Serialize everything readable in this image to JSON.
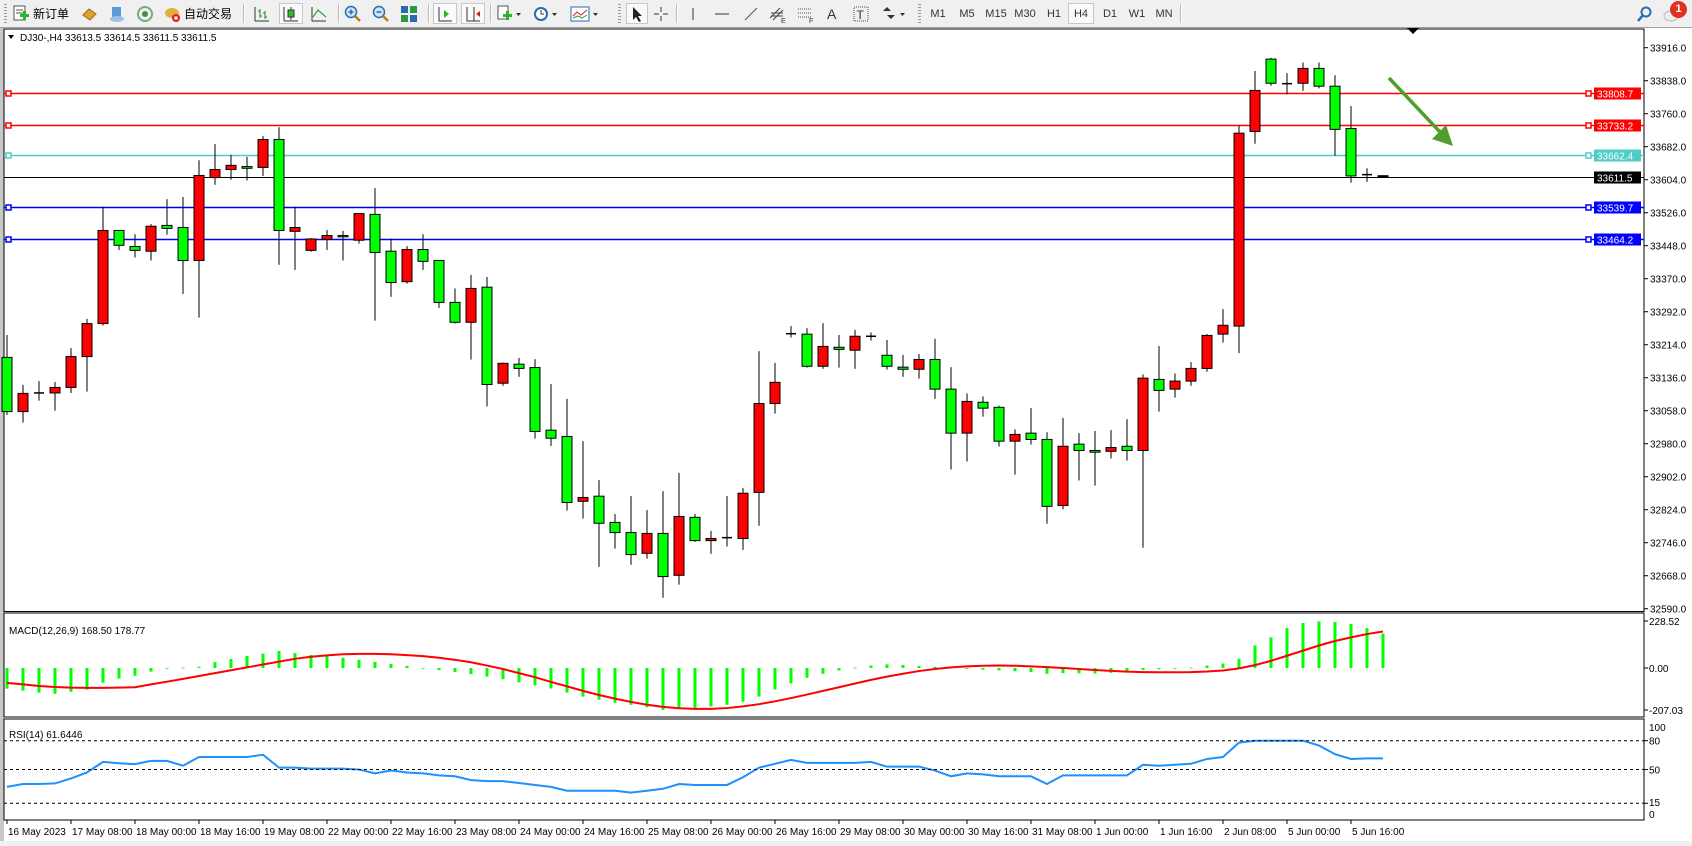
{
  "toolbar": {
    "new_order_label": "新订单",
    "auto_trading_label": "自动交易",
    "timeframes": [
      "M1",
      "M5",
      "M15",
      "M30",
      "H1",
      "H4",
      "D1",
      "W1",
      "MN"
    ],
    "active_timeframe": "H4",
    "notification_count": "1",
    "icons": [
      "new-order-icon",
      "market-watch-icon",
      "navigator-icon",
      "signals-icon",
      "auto-trading-icon",
      "bar-chart-icon",
      "candlestick-icon",
      "line-chart-icon",
      "zoom-in-icon",
      "zoom-out-icon",
      "tile-windows-icon",
      "chart-shift-icon",
      "autoscroll-icon",
      "new-chart-icon",
      "periods-icon",
      "indicators-icon",
      "cursor-icon",
      "crosshair-icon",
      "vertical-line-icon",
      "horizontal-line-icon",
      "trendline-icon",
      "equidistant-channel-icon",
      "fibonacci-icon",
      "text-icon",
      "text-label-icon",
      "arrows-icon",
      "search-icon",
      "notification-icon"
    ]
  },
  "chart": {
    "header": "DJ30-,H4  33613.5 33614.5 33611.5 33611.5",
    "symbol": "DJ30-",
    "timeframe": "H4",
    "colors": {
      "bull": "#ff0000",
      "bear": "#00ff00",
      "outline": "#000000",
      "macd_hist": "#00ff00",
      "macd_signal": "#ff0000",
      "rsi": "#1e90ff",
      "arrow": "#4f9e2e"
    },
    "price_ticks": [
      "33916.0",
      "33838.0",
      "33760.0",
      "33682.0",
      "33604.0",
      "33526.0",
      "33448.0",
      "33370.0",
      "33292.0",
      "33214.0",
      "33136.0",
      "33058.0",
      "32980.0",
      "32902.0",
      "32824.0",
      "32746.0",
      "32668.0",
      "32590.0"
    ],
    "horizontal_lines": [
      {
        "price": 33808.7,
        "label": "33808.7",
        "color": "#ff0000"
      },
      {
        "price": 33733.2,
        "label": "33733.2",
        "color": "#ff0000"
      },
      {
        "price": 33662.4,
        "label": "33662.4",
        "color": "#4ecdc4"
      },
      {
        "price": 33539.7,
        "label": "33539.7",
        "color": "#0000ff"
      },
      {
        "price": 33464.2,
        "label": "33464.2",
        "color": "#0000ff"
      }
    ],
    "bid_line": {
      "price": 33611.5,
      "label": "33611.5",
      "color": "#000000"
    },
    "annotation": {
      "type": "arrow",
      "direction": "down-right",
      "color": "#4f9e2e"
    },
    "time_labels": [
      "16 May 2023",
      "17 May 08:00",
      "18 May 00:00",
      "18 May 16:00",
      "19 May 08:00",
      "22 May 00:00",
      "22 May 16:00",
      "23 May 08:00",
      "24 May 00:00",
      "24 May 16:00",
      "25 May 08:00",
      "26 May 00:00",
      "26 May 16:00",
      "29 May 08:00",
      "30 May 00:00",
      "30 May 16:00",
      "31 May 08:00",
      "1 Jun 00:00",
      "1 Jun 16:00",
      "2 Jun 08:00",
      "5 Jun 00:00",
      "5 Jun 16:00"
    ],
    "time_label_every_bars": 4,
    "macd": {
      "label": "MACD(12,26,9) 168.50 178.77",
      "ticks": [
        "228.52",
        "0.00",
        "-207.03"
      ],
      "range": [
        -207.03,
        228.52
      ]
    },
    "rsi": {
      "label": "RSI(14) 61.6446",
      "ticks": [
        "100",
        "80",
        "50",
        "15",
        "0"
      ],
      "levels": [
        80,
        50,
        15
      ]
    }
  },
  "chart_data": {
    "type": "candlestick",
    "ylim": [
      32590,
      33916
    ],
    "ohlc": [
      [
        33184,
        33237,
        33048,
        33056
      ],
      [
        33056,
        33119,
        33030,
        33099
      ],
      [
        33100,
        33128,
        33082,
        33100
      ],
      [
        33100,
        33126,
        33058,
        33113
      ],
      [
        33113,
        33206,
        33100,
        33186
      ],
      [
        33186,
        33275,
        33103,
        33264
      ],
      [
        33264,
        33540,
        33259,
        33484
      ],
      [
        33484,
        33484,
        33438,
        33449
      ],
      [
        33446,
        33475,
        33420,
        33437
      ],
      [
        33435,
        33499,
        33413,
        33494
      ],
      [
        33496,
        33558,
        33474,
        33489
      ],
      [
        33491,
        33563,
        33334,
        33413
      ],
      [
        33413,
        33650,
        33278,
        33614
      ],
      [
        33609,
        33688,
        33592,
        33628
      ],
      [
        33628,
        33663,
        33604,
        33638
      ],
      [
        33635,
        33658,
        33602,
        33631
      ],
      [
        33633,
        33707,
        33613,
        33699
      ],
      [
        33699,
        33728,
        33403,
        33484
      ],
      [
        33482,
        33540,
        33391,
        33491
      ],
      [
        33437,
        33466,
        33434,
        33464
      ],
      [
        33463,
        33485,
        33438,
        33472
      ],
      [
        33472,
        33483,
        33413,
        33469
      ],
      [
        33461,
        33524,
        33453,
        33524
      ],
      [
        33522,
        33584,
        33271,
        33432
      ],
      [
        33435,
        33465,
        33327,
        33361
      ],
      [
        33363,
        33447,
        33358,
        33439
      ],
      [
        33439,
        33475,
        33391,
        33411
      ],
      [
        33413,
        33413,
        33301,
        33314
      ],
      [
        33314,
        33347,
        33264,
        33267
      ],
      [
        33267,
        33379,
        33179,
        33347
      ],
      [
        33350,
        33374,
        33068,
        33120
      ],
      [
        33123,
        33172,
        33117,
        33170
      ],
      [
        33168,
        33183,
        33138,
        33158
      ],
      [
        33160,
        33180,
        32992,
        33009
      ],
      [
        33012,
        33121,
        32975,
        32993
      ],
      [
        32997,
        33086,
        32822,
        32841
      ],
      [
        32844,
        32986,
        32803,
        32853
      ],
      [
        32856,
        32894,
        32689,
        32792
      ],
      [
        32794,
        32814,
        32732,
        32770
      ],
      [
        32770,
        32856,
        32694,
        32718
      ],
      [
        32721,
        32823,
        32708,
        32768
      ],
      [
        32768,
        32868,
        32616,
        32666
      ],
      [
        32669,
        32911,
        32647,
        32808
      ],
      [
        32806,
        32814,
        32748,
        32751
      ],
      [
        32751,
        32774,
        32720,
        32756
      ],
      [
        32758,
        32856,
        32737,
        32758
      ],
      [
        32756,
        32875,
        32729,
        32863
      ],
      [
        32865,
        33199,
        32786,
        33075
      ],
      [
        33075,
        33171,
        33051,
        33125
      ],
      [
        33240,
        33258,
        33231,
        33240
      ],
      [
        33239,
        33253,
        33160,
        33163
      ],
      [
        33163,
        33265,
        33157,
        33210
      ],
      [
        33208,
        33237,
        33160,
        33203
      ],
      [
        33201,
        33249,
        33157,
        33234
      ],
      [
        33234,
        33243,
        33224,
        33234
      ],
      [
        33189,
        33225,
        33155,
        33163
      ],
      [
        33161,
        33190,
        33138,
        33156
      ],
      [
        33156,
        33192,
        33134,
        33179
      ],
      [
        33179,
        33228,
        33086,
        33109
      ],
      [
        33109,
        33161,
        32919,
        33005
      ],
      [
        33005,
        33099,
        32938,
        33080
      ],
      [
        33078,
        33092,
        33044,
        33064
      ],
      [
        33066,
        33070,
        32973,
        32986
      ],
      [
        32986,
        33014,
        32907,
        33002
      ],
      [
        33005,
        33064,
        32978,
        32990
      ],
      [
        32990,
        33007,
        32791,
        32832
      ],
      [
        32834,
        33041,
        32825,
        32974
      ],
      [
        32979,
        33005,
        32893,
        32964
      ],
      [
        32964,
        33010,
        32881,
        32960
      ],
      [
        32962,
        33012,
        32945,
        32971
      ],
      [
        32974,
        33038,
        32940,
        32964
      ],
      [
        32964,
        33144,
        32734,
        33135
      ],
      [
        33132,
        33211,
        33056,
        33106
      ],
      [
        33109,
        33146,
        33089,
        33128
      ],
      [
        33128,
        33173,
        33117,
        33158
      ],
      [
        33158,
        33239,
        33150,
        33236
      ],
      [
        33239,
        33298,
        33219,
        33260
      ],
      [
        33258,
        33731,
        33194,
        33714
      ],
      [
        33718,
        33861,
        33689,
        33815
      ],
      [
        33889,
        33892,
        33826,
        33832
      ],
      [
        33831,
        33856,
        33806,
        33831
      ],
      [
        33832,
        33881,
        33814,
        33867
      ],
      [
        33867,
        33881,
        33820,
        33825
      ],
      [
        33825,
        33851,
        33661,
        33723
      ],
      [
        33725,
        33778,
        33597,
        33613
      ],
      [
        33616,
        33631,
        33599,
        33616
      ],
      [
        33613.5,
        33614.5,
        33611.5,
        33611.5
      ]
    ],
    "macd_histogram": [
      -101,
      -111,
      -121,
      -126,
      -116,
      -106,
      -72,
      -52,
      -38,
      -18,
      -3,
      2,
      6,
      29,
      44,
      59,
      70,
      83,
      73,
      64,
      58,
      50,
      40,
      30,
      20,
      10,
      0,
      -10,
      -20,
      -30,
      -42,
      -55,
      -70,
      -85,
      -100,
      -120,
      -140,
      -155,
      -170,
      -180,
      -192,
      -205,
      -200,
      -195,
      -188,
      -180,
      -165,
      -140,
      -105,
      -75,
      -48,
      -28,
      -12,
      2,
      12,
      18,
      15,
      10,
      6,
      2,
      -3,
      -8,
      -12,
      -16,
      -20,
      -28,
      -25,
      -26,
      -27,
      -24,
      -22,
      -10,
      -6,
      -3,
      2,
      12,
      22,
      45,
      110,
      150,
      195,
      220,
      228,
      225,
      215,
      195,
      168.5
    ],
    "macd_signal": [
      -73,
      -80,
      -88,
      -93,
      -96,
      -97,
      -97,
      -96,
      -94,
      -80,
      -67,
      -53,
      -39,
      -25,
      -11,
      3,
      17,
      31,
      45,
      55,
      62,
      67,
      69,
      69,
      67,
      63,
      58,
      50,
      40,
      28,
      12,
      -5,
      -25,
      -45,
      -68,
      -90,
      -112,
      -132,
      -150,
      -166,
      -180,
      -190,
      -197,
      -200,
      -200,
      -196,
      -188,
      -177,
      -163,
      -147,
      -130,
      -112,
      -94,
      -76,
      -58,
      -42,
      -28,
      -15,
      -5,
      3,
      8,
      11,
      12,
      11,
      8,
      4,
      0,
      -5,
      -10,
      -14,
      -18,
      -20,
      -21,
      -21,
      -20,
      -17,
      -12,
      -2,
      14,
      35,
      60,
      85,
      110,
      132,
      150,
      166,
      178.77
    ],
    "rsi": [
      32,
      35,
      35,
      35.6,
      40.8,
      47,
      58,
      56.5,
      55.7,
      59,
      59,
      54,
      63,
      63,
      63,
      63,
      65.4,
      52,
      52,
      51,
      51,
      51,
      50,
      46,
      49,
      47,
      46,
      44,
      43,
      39,
      38,
      38,
      36,
      34,
      32,
      28,
      28,
      28,
      28,
      26,
      28,
      30,
      35,
      34,
      34,
      34,
      42,
      52,
      56,
      60,
      57,
      57,
      57,
      57,
      58,
      53,
      53,
      53,
      49,
      43,
      46,
      45,
      43,
      43,
      43,
      35,
      44,
      44,
      44,
      44,
      44,
      55,
      54,
      55,
      56,
      61,
      63,
      78,
      80,
      80,
      80,
      80,
      75,
      66,
      61,
      61.6,
      61.6446
    ]
  }
}
